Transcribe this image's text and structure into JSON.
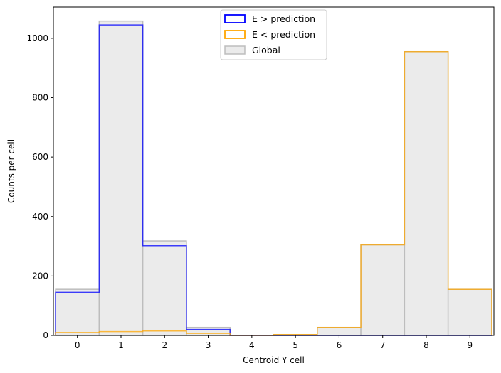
{
  "chart_data": {
    "type": "bar",
    "xlabel": "Centroid Y cell",
    "ylabel": "Counts per cell",
    "x_ticks": [
      "0",
      "1",
      "2",
      "3",
      "4",
      "5",
      "6",
      "7",
      "8",
      "9"
    ],
    "y_ticks": [
      0,
      200,
      400,
      600,
      800,
      1000
    ],
    "xlim": [
      -0.55,
      9.55
    ],
    "ylim": [
      0,
      1105
    ],
    "legend": {
      "placement": "upper center"
    },
    "series": [
      {
        "name": "E > prediction",
        "style": "step-outline",
        "color": "#0000ff",
        "values": [
          145,
          1045,
          302,
          20,
          0,
          0,
          0,
          0,
          0,
          0
        ]
      },
      {
        "name": "E < prediction",
        "style": "step-outline",
        "color": "#ffa500",
        "values": [
          10,
          13,
          15,
          7,
          0,
          3,
          27,
          305,
          955,
          155
        ]
      },
      {
        "name": "Global",
        "style": "filled",
        "fill": "#ebebeb",
        "edge": "#bdbdbd",
        "values": [
          155,
          1058,
          318,
          27,
          0,
          3,
          27,
          305,
          955,
          155
        ]
      }
    ]
  }
}
